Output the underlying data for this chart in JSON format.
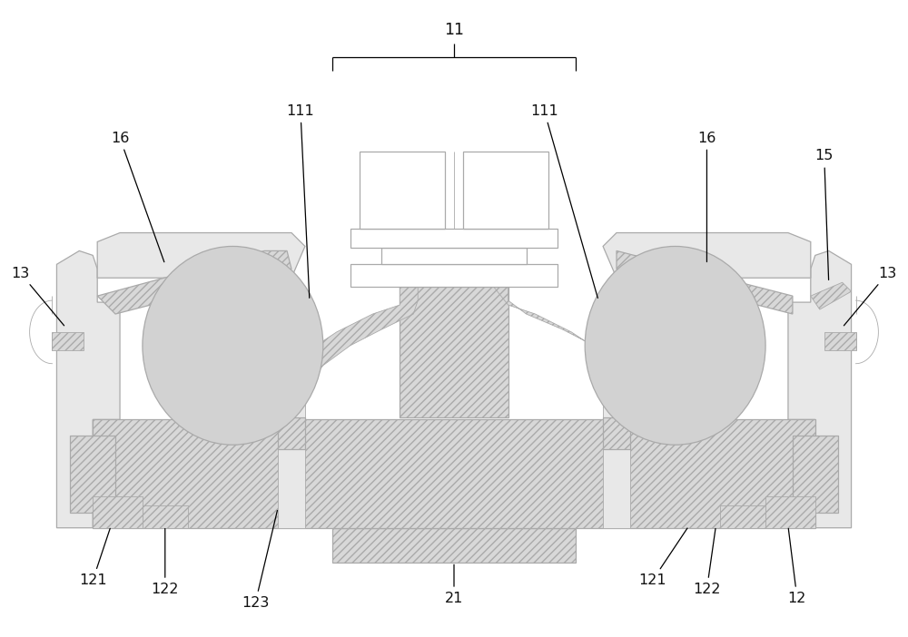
{
  "bg_color": "#ffffff",
  "lc": "#aaaaaa",
  "lc_dark": "#888888",
  "label_color": "#111111",
  "label_fontsize": 11.5,
  "gray_fill": "#d2d2d2",
  "hatch_fill": "#d8d8d8",
  "light_gray": "#e8e8e8",
  "white_fill": "#ffffff",
  "ann_lw": 0.9,
  "main_lw": 0.9,
  "thin_lw": 0.6,
  "figsize": [
    10.0,
    7.02
  ],
  "dpi": 100
}
